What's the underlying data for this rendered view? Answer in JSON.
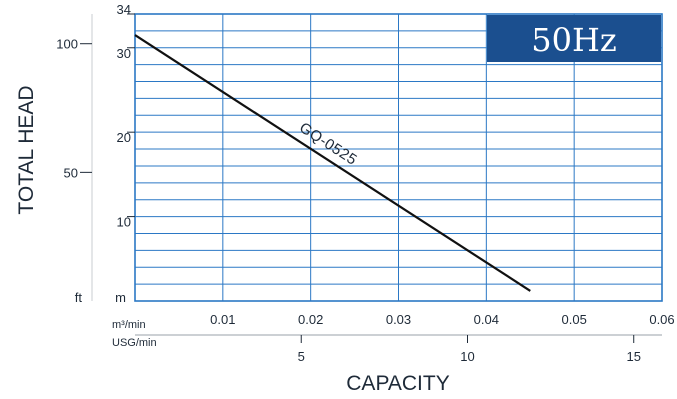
{
  "badge": {
    "text": "50Hz",
    "color": "#1b4f8f"
  },
  "colors": {
    "grid": "#2b78c5",
    "curve": "#111111",
    "text": "#1e2a38"
  },
  "chart_data": {
    "type": "line",
    "title": "",
    "xlabel": "CAPACITY",
    "ylabel": "TOTAL HEAD",
    "x_unit_primary": "m³/min",
    "x_unit_secondary": "USG/min",
    "y_unit_primary": "m",
    "y_unit_secondary": "ft",
    "xlim": [
      0,
      0.06
    ],
    "ylim": [
      0,
      34
    ],
    "x_ticks_primary": [
      {
        "value": 0.01,
        "label": "0.01"
      },
      {
        "value": 0.02,
        "label": "0.02"
      },
      {
        "value": 0.03,
        "label": "0.03"
      },
      {
        "value": 0.04,
        "label": "0.04"
      },
      {
        "value": 0.05,
        "label": "0.05"
      },
      {
        "value": 0.06,
        "label": "0.06"
      }
    ],
    "x_ticks_secondary": [
      {
        "value": 5,
        "label": "5"
      },
      {
        "value": 10,
        "label": "10"
      },
      {
        "value": 15,
        "label": "15"
      }
    ],
    "usg_per_m3min": 264.17,
    "y_ticks_primary": [
      {
        "value": 10,
        "label": "10"
      },
      {
        "value": 20,
        "label": "20"
      },
      {
        "value": 30,
        "label": "30"
      },
      {
        "value": 34,
        "label": "34"
      }
    ],
    "y_ticks_secondary": [
      {
        "value": 50,
        "label": "50"
      },
      {
        "value": 100,
        "label": "100"
      }
    ],
    "ft_per_m": 3.2808,
    "y_grid_step": 2,
    "x_grid_step": 0.01,
    "series": [
      {
        "name": "GQ-0525",
        "x": [
          0,
          0.045
        ],
        "y": [
          31.5,
          1.2
        ]
      }
    ]
  }
}
